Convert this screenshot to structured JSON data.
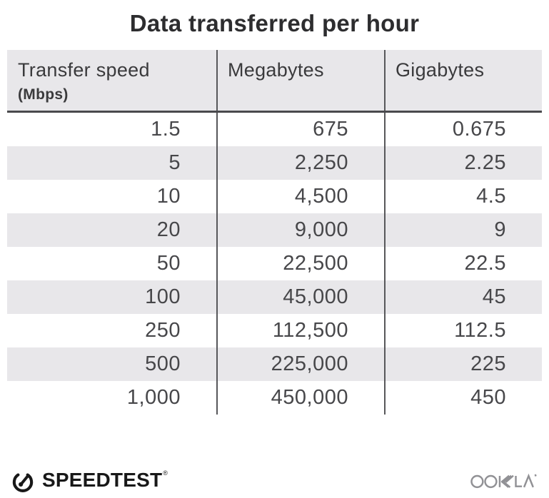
{
  "title": "Data transferred per hour",
  "table": {
    "columns": [
      {
        "label": "Transfer speed",
        "sublabel": "(Mbps)"
      },
      {
        "label": "Megabytes"
      },
      {
        "label": "Gigabytes"
      }
    ],
    "rows": [
      [
        "1.5",
        "675",
        "0.675"
      ],
      [
        "5",
        "2,250",
        "2.25"
      ],
      [
        "10",
        "4,500",
        "4.5"
      ],
      [
        "20",
        "9,000",
        "9"
      ],
      [
        "50",
        "22,500",
        "22.5"
      ],
      [
        "100",
        "45,000",
        "45"
      ],
      [
        "250",
        "112,500",
        "112.5"
      ],
      [
        "500",
        "225,000",
        "225"
      ],
      [
        "1,000",
        "450,000",
        "450"
      ]
    ]
  },
  "chart_data": {
    "type": "table",
    "title": "Data transferred per hour",
    "columns": [
      "Transfer speed (Mbps)",
      "Megabytes",
      "Gigabytes"
    ],
    "rows": [
      [
        1.5,
        675,
        0.675
      ],
      [
        5,
        2250,
        2.25
      ],
      [
        10,
        4500,
        4.5
      ],
      [
        20,
        9000,
        9
      ],
      [
        50,
        22500,
        22.5
      ],
      [
        100,
        45000,
        45
      ],
      [
        250,
        112500,
        112.5
      ],
      [
        500,
        225000,
        225
      ],
      [
        1000,
        450000,
        450
      ]
    ]
  },
  "footer": {
    "brand": "SPEEDTEST",
    "brand_mark": "®",
    "company": "OOKLA"
  },
  "colors": {
    "stripe": "#e8e7ea",
    "header_bg": "#e8e7ea",
    "divider": "#57575a",
    "header_rule": "#4a4a4d",
    "title_text": "#2d2d2f",
    "header_text": "#3a3a3c",
    "number_text": "#47474a",
    "brand_black": "#181818",
    "ookla_gray": "#919195"
  }
}
